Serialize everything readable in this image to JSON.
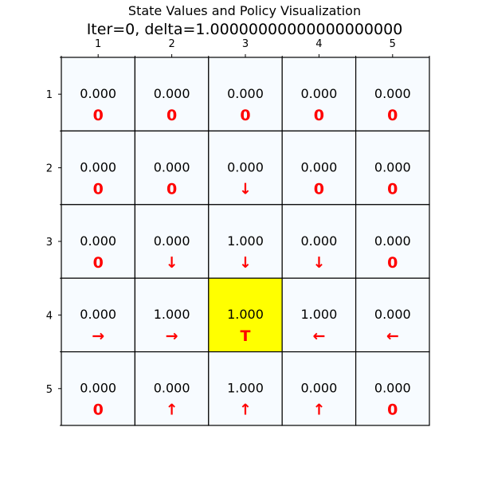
{
  "title": "State Values and Policy Visualization",
  "subtitle": "Iter=0, delta=1.00000000000000000000",
  "colors": {
    "cell_fill": "#f7fbff",
    "terminal_fill": "#ffff00",
    "grid_line": "#000000",
    "action": "#ff0000"
  },
  "chart_data": {
    "type": "heatmap",
    "title": "State Values and Policy Visualization",
    "subtitle": "Iter=0, delta=1.00000000000000000000",
    "x_ticks": [
      "1",
      "2",
      "3",
      "4",
      "5"
    ],
    "y_ticks": [
      "1",
      "2",
      "3",
      "4",
      "5"
    ],
    "x_axis_position": "top",
    "terminal": [
      4,
      3
    ],
    "values": [
      [
        "0.000",
        "0.000",
        "0.000",
        "0.000",
        "0.000"
      ],
      [
        "0.000",
        "0.000",
        "0.000",
        "0.000",
        "0.000"
      ],
      [
        "0.000",
        "0.000",
        "1.000",
        "0.000",
        "0.000"
      ],
      [
        "0.000",
        "1.000",
        "1.000",
        "1.000",
        "0.000"
      ],
      [
        "0.000",
        "0.000",
        "1.000",
        "0.000",
        "0.000"
      ]
    ],
    "actions": [
      [
        "0",
        "0",
        "0",
        "0",
        "0"
      ],
      [
        "0",
        "0",
        "↓",
        "0",
        "0"
      ],
      [
        "0",
        "↓",
        "↓",
        "↓",
        "0"
      ],
      [
        "→",
        "→",
        "T",
        "←",
        "←"
      ],
      [
        "0",
        "↑",
        "↑",
        "↑",
        "0"
      ]
    ]
  }
}
